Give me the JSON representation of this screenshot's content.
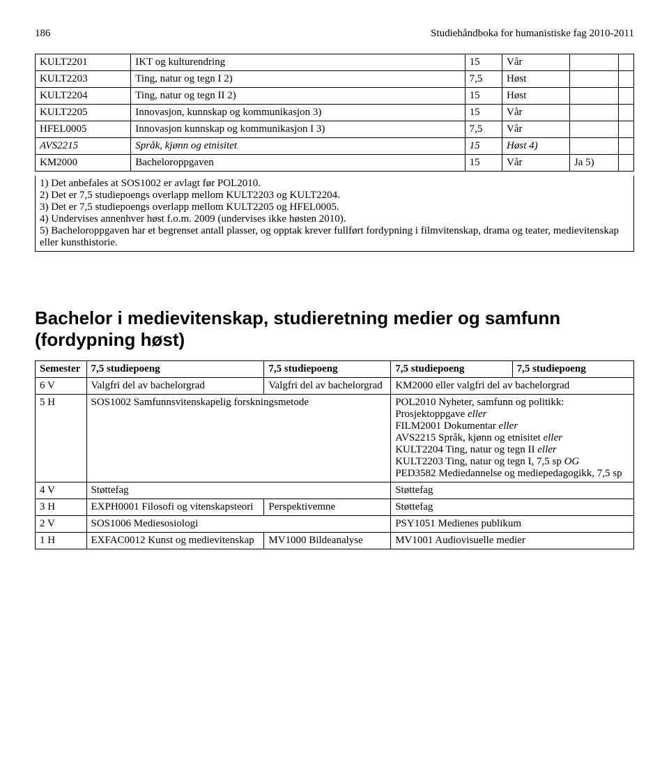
{
  "header": {
    "page_number": "186",
    "doc_title": "Studiehåndboka for humanistiske fag 2010-2011"
  },
  "courses_table": {
    "rows": [
      {
        "code": "KULT2201",
        "name": "IKT og kulturendring",
        "sp": "15",
        "sem": "Vår",
        "italic": false
      },
      {
        "code": "KULT2203",
        "name": "Ting, natur og tegn I 2)",
        "sp": "7,5",
        "sem": "Høst",
        "italic": false
      },
      {
        "code": "KULT2204",
        "name": "Ting, natur og tegn II 2)",
        "sp": "15",
        "sem": "Høst",
        "italic": false
      },
      {
        "code": "KULT2205",
        "name": "Innovasjon, kunnskap og kommunikasjon 3)",
        "sp": "15",
        "sem": "Vår",
        "italic": false
      },
      {
        "code": "HFEL0005",
        "name": "Innovasjon kunnskap og kommunikasjon I 3)",
        "sp": "7,5",
        "sem": "Vår",
        "italic": false
      },
      {
        "code": "AVS2215",
        "name": "Språk, kjønn og etnisitet",
        "sp": "15",
        "sem": "Høst 4)",
        "italic": true
      },
      {
        "code": "KM2000",
        "name": "Bacheloroppgaven",
        "sp": "15",
        "sem": "Vår",
        "extra1": "Ja 5)",
        "italic": false
      }
    ]
  },
  "notes": {
    "n1": "1) Det anbefales at SOS1002 er avlagt før POL2010.",
    "n2": "2) Det er 7,5 studiepoengs overlapp mellom KULT2203 og KULT2204.",
    "n3": "3) Det er 7,5 studiepoengs overlapp mellom KULT2205 og HFEL0005.",
    "n4": "4) Undervises annenhver høst f.o.m. 2009 (undervises ikke høsten 2010).",
    "n5": "5) Bacheloroppgaven har et begrenset antall plasser, og opptak krever fullført fordypning i filmvitenskap, drama og teater, medievitenskap eller kunsthistorie."
  },
  "section_title": "Bachelor i medievitenskap, studieretning medier og samfunn (fordypning høst)",
  "sched": {
    "head": {
      "c1": "Semester",
      "c2": "7,5 studiepoeng",
      "c3": "7,5 studiepoeng",
      "c4": "7,5 studiepoeng",
      "c5": "7,5 studiepoeng"
    },
    "r6": {
      "sem": "6 V",
      "a": "Valgfri del av bachelorgrad",
      "b": "Valgfri del av bachelorgrad",
      "c": "KM2000 eller valgfri del av bachelorgrad"
    },
    "r5": {
      "sem": "5 H",
      "a": "SOS1002 Samfunnsvitenskapelig forskningsmetode",
      "c_l1": "POL2010 Nyheter, samfunn og politikk:",
      "c_l2a": "Prosjektoppgave ",
      "c_l2b": "eller",
      "c_l3a": "FILM2001 Dokumentar ",
      "c_l3b": "eller",
      "c_l4a": "AVS2215 Språk, kjønn og etnisitet ",
      "c_l4b": "eller",
      "c_l5a": "KULT2204 Ting, natur og tegn II ",
      "c_l5b": "eller",
      "c_l6a": "KULT2203 Ting, natur og tegn I, 7,5 sp ",
      "c_l6b": "OG",
      "c_l7": "PED3582 Mediedannelse og mediepedagogikk, 7,5 sp"
    },
    "r4": {
      "sem": "4 V",
      "a": "Støttefag",
      "c": "Støttefag"
    },
    "r3": {
      "sem": "3 H",
      "a": "EXPH0001 Filosofi og vitenskapsteori",
      "b": "Perspektivemne",
      "c": "Støttefag"
    },
    "r2": {
      "sem": "2 V",
      "a": "SOS1006 Mediesosiologi",
      "c": "PSY1051 Medienes publikum"
    },
    "r1": {
      "sem": "1 H",
      "a": "EXFAC0012 Kunst og medievitenskap",
      "b": "MV1000 Bildeanalyse",
      "c": "MV1001 Audiovisuelle medier"
    }
  }
}
